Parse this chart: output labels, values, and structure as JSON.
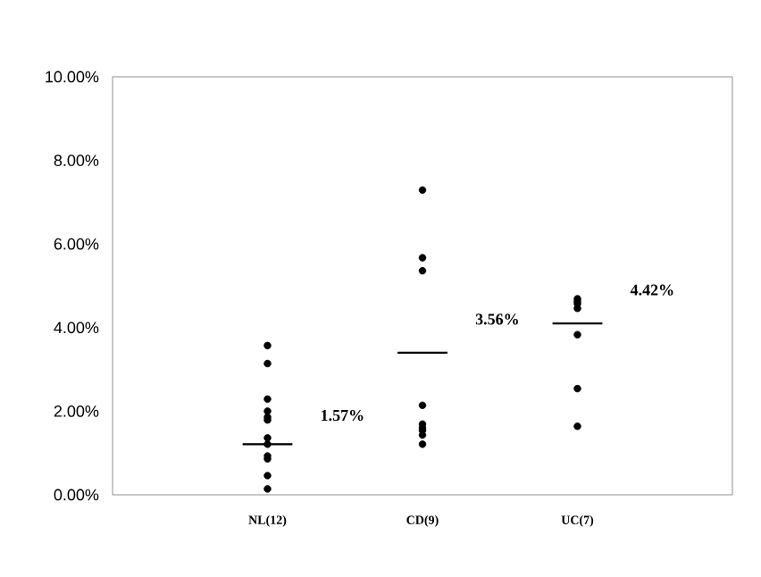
{
  "chart_data": {
    "type": "scatter",
    "categories": [
      "NL(12)",
      "CD(9)",
      "UC(7)"
    ],
    "series": [
      {
        "type": "scatter",
        "color": "#000000",
        "x": [
          "NL(12)",
          "NL(12)",
          "NL(12)",
          "NL(12)",
          "NL(12)",
          "NL(12)",
          "NL(12)",
          "NL(12)",
          "NL(12)",
          "NL(12)",
          "NL(12)",
          "NL(12)",
          "CD(9)",
          "CD(9)",
          "CD(9)",
          "CD(9)",
          "CD(9)",
          "CD(9)",
          "CD(9)",
          "CD(9)",
          "CD(9)",
          "UC(7)",
          "UC(7)",
          "UC(7)",
          "UC(7)",
          "UC(7)",
          "UC(7)",
          "UC(7)"
        ],
        "values": [
          3.57,
          3.14,
          2.29,
          2.0,
          1.86,
          1.79,
          1.36,
          1.21,
          0.93,
          0.86,
          0.46,
          0.14,
          7.29,
          5.67,
          5.36,
          2.14,
          1.69,
          1.6,
          1.54,
          1.43,
          1.21,
          4.69,
          4.63,
          4.57,
          4.46,
          3.83,
          2.54,
          1.64
        ]
      },
      {
        "type": "box",
        "color": "#000000",
        "boxes": [
          {
            "low": 1.21,
            "q1": 1.21,
            "median": 1.21,
            "q3": 1.21,
            "high": 1.21
          },
          {
            "low": 3.4,
            "q1": 3.4,
            "median": 3.4,
            "q3": 3.4,
            "high": 3.4
          },
          {
            "low": 4.1,
            "q1": 4.1,
            "median": 4.1,
            "q3": 4.1,
            "high": 4.1
          }
        ]
      }
    ],
    "ylim": [
      0,
      10
    ],
    "yticks": [
      {
        "value": 0,
        "label": "0.00%"
      },
      {
        "value": 2,
        "label": "2.00%"
      },
      {
        "value": 4,
        "label": "4.00%"
      },
      {
        "value": 6,
        "label": "6.00%"
      },
      {
        "value": 8,
        "label": "8.00%"
      },
      {
        "value": 10,
        "label": "10.00%"
      }
    ],
    "grid": false,
    "marker": "circle",
    "annotations": [
      "1.57%",
      "3.56%",
      "4.42%"
    ]
  }
}
